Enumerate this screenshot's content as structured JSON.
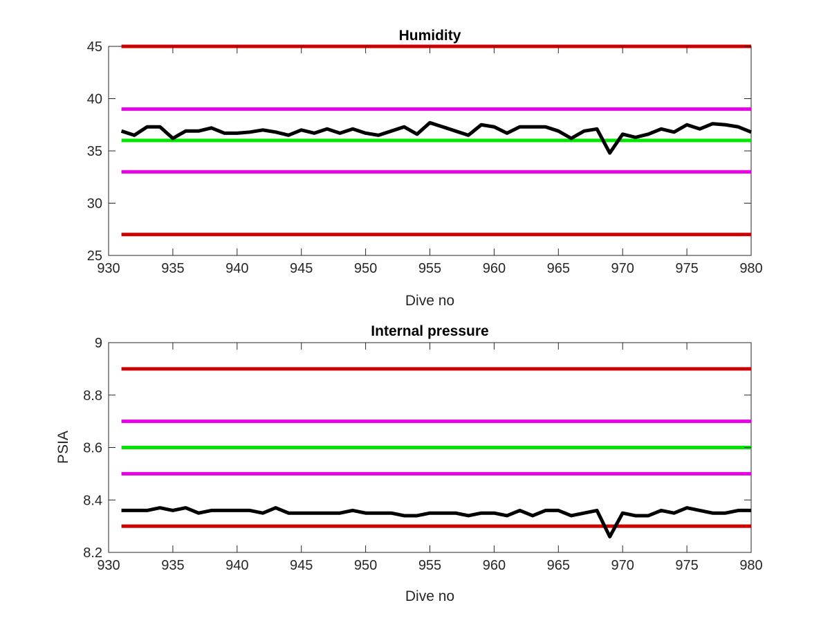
{
  "colors": {
    "limit_red": "#cc0000",
    "limit_magenta": "#e600e6",
    "target_green": "#00e600",
    "measurement": "#000000",
    "axis": "#262626"
  },
  "chart_data": [
    {
      "type": "line",
      "title": "Humidity",
      "xlabel": "Dive no",
      "ylabel": "",
      "xlim": [
        930,
        980
      ],
      "ylim": [
        25,
        45
      ],
      "xticks": [
        930,
        935,
        940,
        945,
        950,
        955,
        960,
        965,
        970,
        975,
        980
      ],
      "yticks": [
        25,
        30,
        35,
        40,
        45
      ],
      "xtick_labels": [
        "930",
        "935",
        "940",
        "945",
        "950",
        "955",
        "960",
        "965",
        "970",
        "975",
        "980"
      ],
      "ytick_labels": [
        "25",
        "30",
        "35",
        "40",
        "45"
      ],
      "grid": false,
      "series": [
        {
          "color": "#cc0000",
          "x": [
            931,
            980
          ],
          "y": [
            45,
            45
          ]
        },
        {
          "color": "#e600e6",
          "x": [
            931,
            980
          ],
          "y": [
            39,
            39
          ]
        },
        {
          "color": "#00e600",
          "x": [
            931,
            980
          ],
          "y": [
            36,
            36
          ]
        },
        {
          "color": "#e600e6",
          "x": [
            931,
            980
          ],
          "y": [
            33,
            33
          ]
        },
        {
          "color": "#cc0000",
          "x": [
            931,
            980
          ],
          "y": [
            27,
            27
          ]
        },
        {
          "color": "#000000",
          "x": [
            931,
            932,
            933,
            934,
            935,
            936,
            937,
            938,
            939,
            940,
            941,
            942,
            943,
            944,
            945,
            946,
            947,
            948,
            949,
            950,
            951,
            952,
            953,
            954,
            955,
            956,
            957,
            958,
            959,
            960,
            961,
            962,
            963,
            964,
            965,
            966,
            967,
            968,
            969,
            970,
            971,
            972,
            973,
            974,
            975,
            976,
            977,
            978,
            979,
            980
          ],
          "y": [
            36.9,
            36.5,
            37.3,
            37.3,
            36.2,
            36.9,
            36.9,
            37.2,
            36.7,
            36.7,
            36.8,
            37.0,
            36.8,
            36.5,
            37.0,
            36.7,
            37.1,
            36.7,
            37.1,
            36.7,
            36.5,
            36.9,
            37.3,
            36.6,
            37.7,
            37.3,
            36.9,
            36.5,
            37.5,
            37.3,
            36.7,
            37.3,
            37.3,
            37.3,
            36.9,
            36.2,
            36.9,
            37.1,
            34.8,
            36.6,
            36.3,
            36.6,
            37.1,
            36.8,
            37.5,
            37.1,
            37.6,
            37.5,
            37.3,
            36.8
          ]
        }
      ]
    },
    {
      "type": "line",
      "title": "Internal pressure",
      "xlabel": "Dive no",
      "ylabel": "PSIA",
      "xlim": [
        930,
        980
      ],
      "ylim": [
        8.2,
        9.0
      ],
      "xticks": [
        930,
        935,
        940,
        945,
        950,
        955,
        960,
        965,
        970,
        975,
        980
      ],
      "yticks": [
        8.2,
        8.4,
        8.6,
        8.8,
        9.0
      ],
      "xtick_labels": [
        "930",
        "935",
        "940",
        "945",
        "950",
        "955",
        "960",
        "965",
        "970",
        "975",
        "980"
      ],
      "ytick_labels": [
        "8.2",
        "8.4",
        "8.6",
        "8.8",
        "9"
      ],
      "grid": false,
      "series": [
        {
          "color": "#cc0000",
          "x": [
            931,
            980
          ],
          "y": [
            8.9,
            8.9
          ]
        },
        {
          "color": "#e600e6",
          "x": [
            931,
            980
          ],
          "y": [
            8.7,
            8.7
          ]
        },
        {
          "color": "#00e600",
          "x": [
            931,
            980
          ],
          "y": [
            8.6,
            8.6
          ]
        },
        {
          "color": "#e600e6",
          "x": [
            931,
            980
          ],
          "y": [
            8.5,
            8.5
          ]
        },
        {
          "color": "#cc0000",
          "x": [
            931,
            980
          ],
          "y": [
            8.3,
            8.3
          ]
        },
        {
          "color": "#000000",
          "x": [
            931,
            932,
            933,
            934,
            935,
            936,
            937,
            938,
            939,
            940,
            941,
            942,
            943,
            944,
            945,
            946,
            947,
            948,
            949,
            950,
            951,
            952,
            953,
            954,
            955,
            956,
            957,
            958,
            959,
            960,
            961,
            962,
            963,
            964,
            965,
            966,
            967,
            968,
            969,
            970,
            971,
            972,
            973,
            974,
            975,
            976,
            977,
            978,
            979,
            980
          ],
          "y": [
            8.36,
            8.36,
            8.36,
            8.37,
            8.36,
            8.37,
            8.35,
            8.36,
            8.36,
            8.36,
            8.36,
            8.35,
            8.37,
            8.35,
            8.35,
            8.35,
            8.35,
            8.35,
            8.36,
            8.35,
            8.35,
            8.35,
            8.34,
            8.34,
            8.35,
            8.35,
            8.35,
            8.34,
            8.35,
            8.35,
            8.34,
            8.36,
            8.34,
            8.36,
            8.36,
            8.34,
            8.35,
            8.36,
            8.26,
            8.35,
            8.34,
            8.34,
            8.36,
            8.35,
            8.37,
            8.36,
            8.35,
            8.35,
            8.36,
            8.36
          ]
        }
      ]
    }
  ]
}
